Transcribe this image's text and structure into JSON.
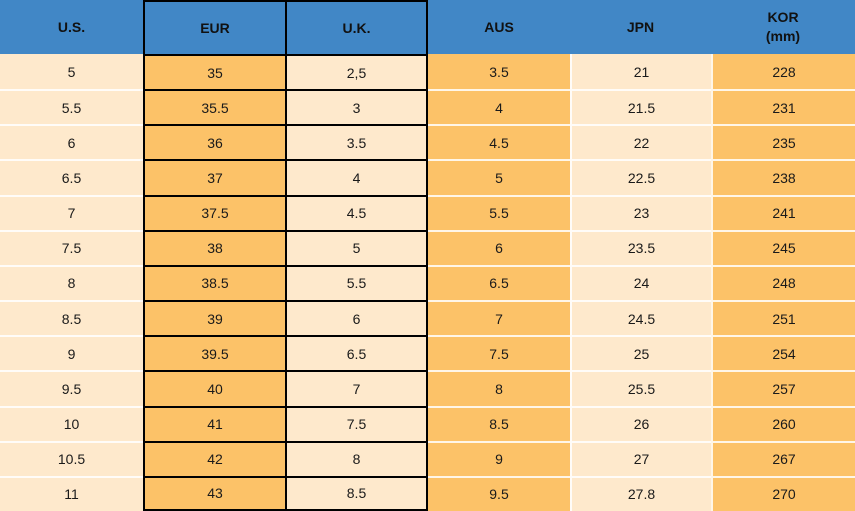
{
  "colors": {
    "header_bg": "#4187c6",
    "header_text": "#111111",
    "orange": "#fcc268",
    "cream": "#fee9cc",
    "cell_text": "#1a1a1a",
    "black_border": "#000000",
    "light_line": "rgba(255,255,255,0.85)"
  },
  "table": {
    "headers": [
      {
        "label": "U.S."
      },
      {
        "label": "EUR"
      },
      {
        "label": "U.K."
      },
      {
        "label": "AUS"
      },
      {
        "label": "JPN"
      },
      {
        "label": "KOR",
        "sublabel": "(mm)"
      }
    ],
    "rows": [
      [
        "5",
        "35",
        "2,5",
        "3.5",
        "21",
        "228"
      ],
      [
        "5.5",
        "35.5",
        "3",
        "4",
        "21.5",
        "231"
      ],
      [
        "6",
        "36",
        "3.5",
        "4.5",
        "22",
        "235"
      ],
      [
        "6.5",
        "37",
        "4",
        "5",
        "22.5",
        "238"
      ],
      [
        "7",
        "37.5",
        "4.5",
        "5.5",
        "23",
        "241"
      ],
      [
        "7.5",
        "38",
        "5",
        "6",
        "23.5",
        "245"
      ],
      [
        "8",
        "38.5",
        "5.5",
        "6.5",
        "24",
        "248"
      ],
      [
        "8.5",
        "39",
        "6",
        "7",
        "24.5",
        "251"
      ],
      [
        "9",
        "39.5",
        "6.5",
        "7.5",
        "25",
        "254"
      ],
      [
        "9.5",
        "40",
        "7",
        "8",
        "25.5",
        "257"
      ],
      [
        "10",
        "41",
        "7.5",
        "8.5",
        "26",
        "260"
      ],
      [
        "10.5",
        "42",
        "8",
        "9",
        "27",
        "267"
      ],
      [
        "11",
        "43",
        "8.5",
        "9.5",
        "27.8",
        "270"
      ]
    ]
  }
}
